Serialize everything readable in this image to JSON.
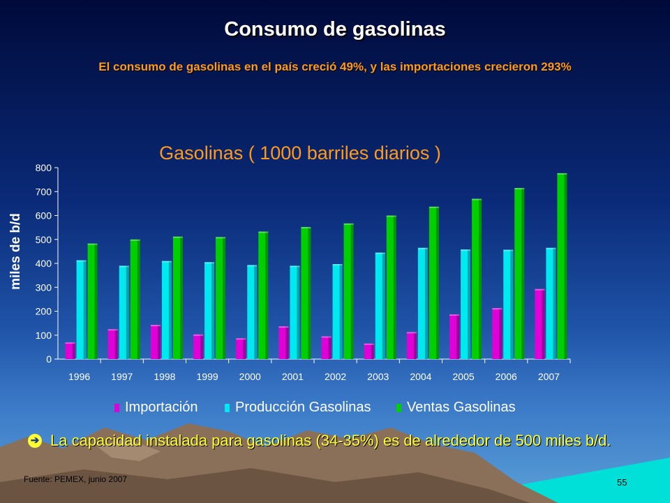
{
  "slide": {
    "title": "Consumo de gasolinas",
    "subtitle": "El consumo de gasolinas en el país creció 49%, y las importaciones crecieron 293%",
    "bullet": "La capacidad instalada para gasolinas (34-35%) es de alrededor de 500 miles b/d.",
    "bullet_icon": "arrow-right-circle-icon",
    "source": "Fuente: PEMEX, junio 2007",
    "page_number": "55"
  },
  "chart_data": {
    "type": "bar",
    "title": "Gasolinas ( 1000 barriles diarios )",
    "xlabel": "",
    "ylabel": "miles de b/d",
    "ylim": [
      0,
      800
    ],
    "yticks": [
      0,
      100,
      200,
      300,
      400,
      500,
      600,
      700,
      800
    ],
    "categories": [
      "1996",
      "1997",
      "1998",
      "1999",
      "2000",
      "2001",
      "2002",
      "2003",
      "2004",
      "2005",
      "2006",
      "2007"
    ],
    "series": [
      {
        "name": "Importación",
        "color": "#e000d8",
        "values": [
          70,
          125,
          143,
          103,
          87,
          137,
          95,
          65,
          113,
          187,
          213,
          293
        ]
      },
      {
        "name": "Producción Gasolinas",
        "color": "#00e8f0",
        "values": [
          413,
          390,
          410,
          405,
          393,
          390,
          397,
          445,
          465,
          458,
          457,
          465
        ]
      },
      {
        "name": "Ventas Gasolinas",
        "color": "#00d000",
        "values": [
          483,
          500,
          512,
          510,
          533,
          552,
          567,
          600,
          637,
          670,
          715,
          777
        ]
      }
    ],
    "grid": false,
    "legend_position": "bottom"
  }
}
